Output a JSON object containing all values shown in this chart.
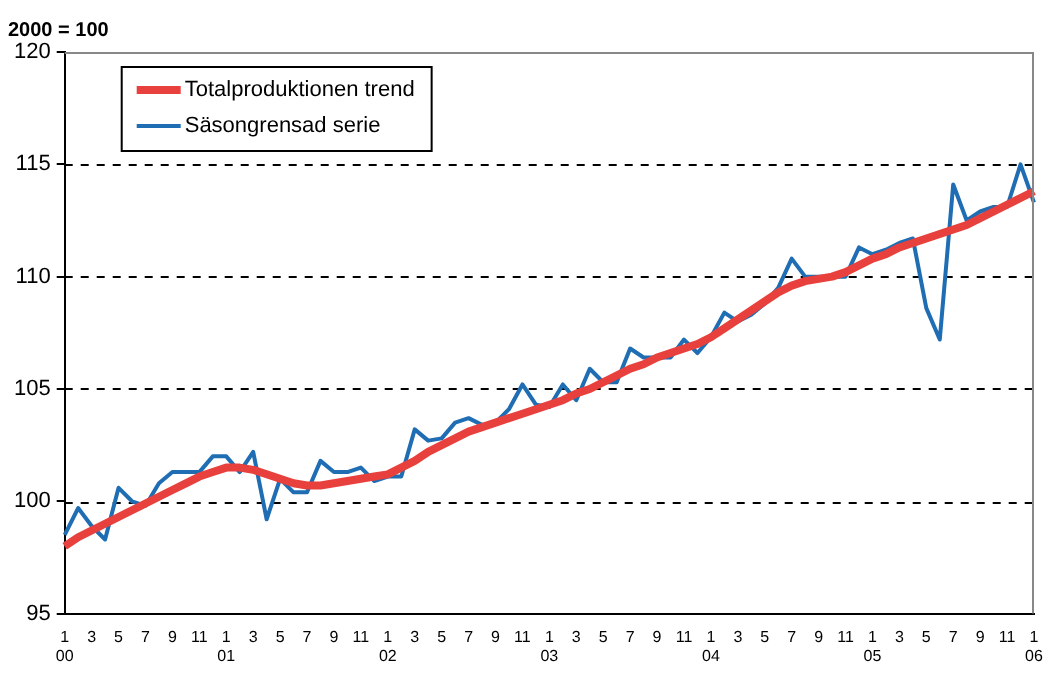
{
  "chart_data": {
    "type": "line",
    "ylabel": "2000 = 100",
    "categories": [
      "1\n00",
      null,
      "3",
      null,
      "5",
      null,
      "7",
      null,
      "9",
      null,
      "11",
      null,
      "1\n01",
      null,
      "3",
      null,
      "5",
      null,
      "7",
      null,
      "9",
      null,
      "11",
      null,
      "1\n02",
      null,
      "3",
      null,
      "5",
      null,
      "7",
      null,
      "9",
      null,
      "11",
      null,
      "1\n03",
      null,
      "3",
      null,
      "5",
      null,
      "7",
      null,
      "9",
      null,
      "11",
      null,
      "1\n04",
      null,
      "3",
      null,
      "5",
      null,
      "7",
      null,
      "9",
      null,
      "11",
      null,
      "1\n05",
      null,
      "3",
      null,
      "5",
      null,
      "7",
      null,
      "9",
      null,
      "11",
      null,
      "1\n06"
    ],
    "series": [
      {
        "name": "Totalproduktionen trend",
        "color": "#e8403c",
        "values": [
          98.0,
          98.4,
          98.7,
          99.0,
          99.3,
          99.6,
          99.9,
          100.2,
          100.5,
          100.8,
          101.1,
          101.3,
          101.5,
          101.5,
          101.4,
          101.2,
          101.0,
          100.8,
          100.7,
          100.7,
          100.8,
          100.9,
          101.0,
          101.1,
          101.2,
          101.5,
          101.8,
          102.2,
          102.5,
          102.8,
          103.1,
          103.3,
          103.5,
          103.7,
          103.9,
          104.1,
          104.3,
          104.5,
          104.8,
          105.0,
          105.3,
          105.6,
          105.9,
          106.1,
          106.4,
          106.6,
          106.8,
          107.0,
          107.3,
          107.7,
          108.1,
          108.5,
          108.9,
          109.3,
          109.6,
          109.8,
          109.9,
          110.0,
          110.2,
          110.5,
          110.8,
          111.0,
          111.3,
          111.5,
          111.7,
          111.9,
          112.1,
          112.3,
          112.6,
          112.9,
          113.2,
          113.5,
          113.8
        ]
      },
      {
        "name": "Säsongrensad serie",
        "color": "#1f6db3",
        "values": [
          98.5,
          99.7,
          98.9,
          98.3,
          100.6,
          100.0,
          99.8,
          100.8,
          101.3,
          101.3,
          101.3,
          102.0,
          102.0,
          101.3,
          102.2,
          99.2,
          101.0,
          100.4,
          100.4,
          101.8,
          101.3,
          101.3,
          101.5,
          100.9,
          101.1,
          101.1,
          103.2,
          102.7,
          102.8,
          103.5,
          103.7,
          103.4,
          103.5,
          104.1,
          105.2,
          104.3,
          104.2,
          105.2,
          104.5,
          105.9,
          105.3,
          105.3,
          106.8,
          106.4,
          106.4,
          106.4,
          107.2,
          106.6,
          107.3,
          108.4,
          108.0,
          108.3,
          108.8,
          109.5,
          110.8,
          110.0,
          110.0,
          110.0,
          110.0,
          111.3,
          111.0,
          111.2,
          111.5,
          111.7,
          108.6,
          107.2,
          114.1,
          112.5,
          112.9,
          113.1,
          113.1,
          115.0,
          113.3
        ]
      }
    ],
    "ylim": [
      95,
      120
    ],
    "yticks": [
      95,
      100,
      105,
      110,
      115,
      120
    ],
    "grid": "y",
    "legend": "top left",
    "marker": "none",
    "line_style": "solid"
  }
}
